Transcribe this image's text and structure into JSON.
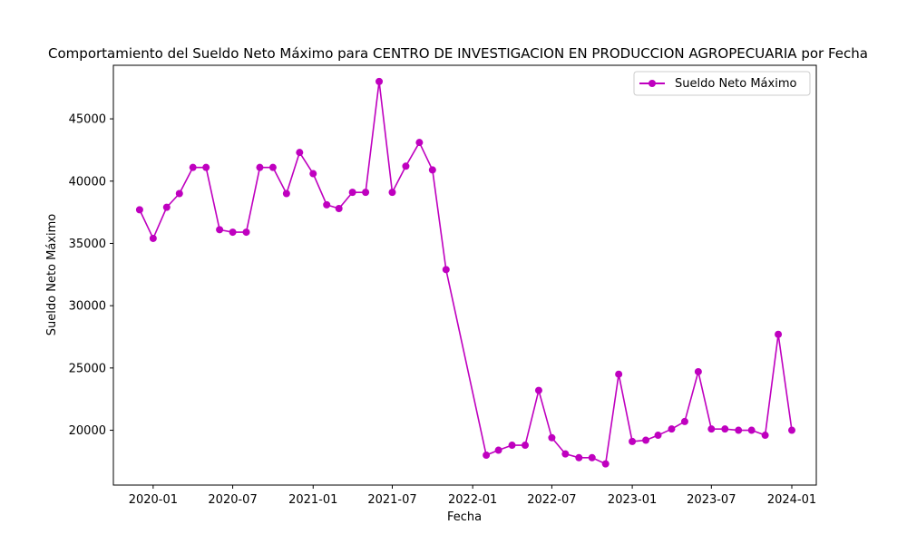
{
  "chart_data": {
    "type": "line",
    "title": "Comportamiento del Sueldo Neto Máximo para CENTRO DE INVESTIGACION EN PRODUCCION AGROPECUARIA por Fecha",
    "xlabel": "Fecha",
    "ylabel": "Sueldo Neto Máximo",
    "x_ticks": [
      "2020-01",
      "2020-07",
      "2021-01",
      "2021-07",
      "2022-01",
      "2022-07",
      "2023-01",
      "2023-07",
      "2024-01"
    ],
    "y_ticks": [
      "20000",
      "25000",
      "30000",
      "35000",
      "40000",
      "45000"
    ],
    "ylim": [
      15600,
      49300
    ],
    "xlim": [
      "2019-10-02",
      "2024-02-26"
    ],
    "grid": false,
    "legend_position": "top-right",
    "series": [
      {
        "name": "Sueldo Neto Máximo",
        "color": "#bf00bf",
        "marker": "circle",
        "x": [
          "2019-12-01",
          "2020-01-01",
          "2020-02-01",
          "2020-03-01",
          "2020-04-01",
          "2020-05-01",
          "2020-06-01",
          "2020-07-01",
          "2020-08-01",
          "2020-09-01",
          "2020-10-01",
          "2020-11-01",
          "2020-12-01",
          "2021-01-01",
          "2021-02-01",
          "2021-03-01",
          "2021-04-01",
          "2021-05-01",
          "2021-06-01",
          "2021-07-01",
          "2021-08-01",
          "2021-09-01",
          "2021-10-01",
          "2021-11-01",
          "2022-02-01",
          "2022-03-01",
          "2022-04-01",
          "2022-05-01",
          "2022-06-01",
          "2022-07-01",
          "2022-08-01",
          "2022-09-01",
          "2022-10-01",
          "2022-11-01",
          "2022-12-01",
          "2023-01-01",
          "2023-02-01",
          "2023-03-01",
          "2023-04-01",
          "2023-05-01",
          "2023-06-01",
          "2023-07-01",
          "2023-08-01",
          "2023-09-01",
          "2023-10-01",
          "2023-11-01",
          "2023-12-01",
          "2024-01-01"
        ],
        "values": [
          37700,
          35400,
          37900,
          39000,
          41100,
          41100,
          36100,
          35900,
          35900,
          41100,
          41100,
          39000,
          42300,
          40600,
          38100,
          37800,
          39100,
          39100,
          48000,
          39100,
          41200,
          43100,
          40900,
          32900,
          18000,
          18400,
          18800,
          18800,
          23200,
          19400,
          18100,
          17800,
          17800,
          17300,
          24500,
          19100,
          19200,
          19600,
          20100,
          20700,
          24700,
          20100,
          20100,
          20000,
          20000,
          19600,
          27700,
          20000
        ]
      }
    ]
  }
}
